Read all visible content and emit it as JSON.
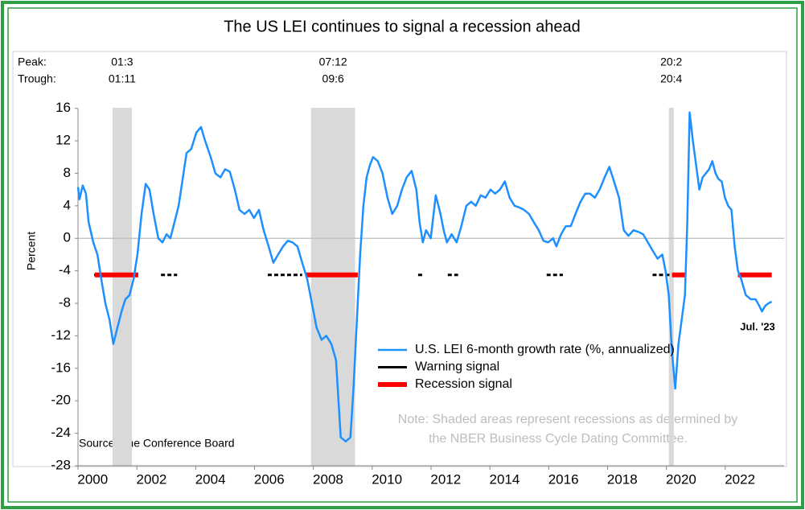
{
  "chart_data": {
    "type": "line",
    "title": "The US LEI continues to signal a recession ahead",
    "y_label": "Percent",
    "peak_label": "Peak:",
    "trough_label": "Trough:",
    "recessions": [
      {
        "peak": "01:3",
        "trough": "01:11",
        "start": 2001.17,
        "end": 2001.83
      },
      {
        "peak": "07:12",
        "trough": "09:6",
        "start": 2007.92,
        "end": 2009.42
      },
      {
        "peak": "20:2",
        "trough": "20:4",
        "start": 2020.08,
        "end": 2020.25
      }
    ],
    "recession_color": "#d9d9d9",
    "xlim": [
      2000,
      2024
    ],
    "xticks": [
      2000,
      2002,
      2004,
      2006,
      2008,
      2010,
      2012,
      2014,
      2016,
      2018,
      2020,
      2022
    ],
    "ylim": [
      -28,
      23
    ],
    "yticks": [
      16,
      12,
      8,
      4,
      0,
      -4,
      -8,
      -12,
      -16,
      -20,
      -24,
      -28
    ],
    "zero_line": true,
    "grid": false,
    "legend": "lower center",
    "series": [
      {
        "name": "U.S. LEI 6-month growth rate (%, annualized)",
        "color": "#1e8fff",
        "width": 2.5,
        "x": [
          2000.0,
          2000.05,
          2000.16,
          2000.27,
          2000.36,
          2000.52,
          2000.66,
          2000.79,
          2000.93,
          2001.07,
          2001.2,
          2001.34,
          2001.48,
          2001.61,
          2001.75,
          2001.89,
          2002.02,
          2002.16,
          2002.3,
          2002.43,
          2002.57,
          2002.73,
          2002.87,
          2003.01,
          2003.14,
          2003.28,
          2003.42,
          2003.69,
          2003.85,
          2004.02,
          2004.18,
          2004.32,
          2004.51,
          2004.67,
          2004.84,
          2005.0,
          2005.16,
          2005.33,
          2005.49,
          2005.66,
          2005.82,
          2005.98,
          2006.15,
          2006.31,
          2006.48,
          2006.64,
          2006.8,
          2006.97,
          2007.13,
          2007.29,
          2007.46,
          2007.62,
          2007.79,
          2007.95,
          2008.11,
          2008.28,
          2008.44,
          2008.61,
          2008.77,
          2008.93,
          2009.1,
          2009.26,
          2009.37,
          2009.48,
          2009.59,
          2009.7,
          2009.81,
          2009.92,
          2010.03,
          2010.19,
          2010.35,
          2010.52,
          2010.68,
          2010.85,
          2011.01,
          2011.17,
          2011.34,
          2011.5,
          2011.61,
          2011.72,
          2011.83,
          2011.99,
          2012.16,
          2012.32,
          2012.43,
          2012.54,
          2012.7,
          2012.87,
          2013.03,
          2013.2,
          2013.36,
          2013.52,
          2013.69,
          2013.85,
          2014.02,
          2014.18,
          2014.34,
          2014.51,
          2014.67,
          2014.84,
          2015.0,
          2015.16,
          2015.33,
          2015.49,
          2015.66,
          2015.82,
          2015.98,
          2016.15,
          2016.26,
          2016.42,
          2016.58,
          2016.75,
          2016.91,
          2017.08,
          2017.24,
          2017.4,
          2017.57,
          2017.73,
          2017.9,
          2018.06,
          2018.22,
          2018.39,
          2018.55,
          2018.71,
          2018.88,
          2019.04,
          2019.21,
          2019.37,
          2019.53,
          2019.7,
          2019.86,
          2019.97,
          2020.08,
          2020.19,
          2020.3,
          2020.41,
          2020.52,
          2020.63,
          2020.71,
          2020.79,
          2020.9,
          2021.01,
          2021.12,
          2021.23,
          2021.34,
          2021.45,
          2021.56,
          2021.67,
          2021.77,
          2021.88,
          2021.99,
          2022.1,
          2022.21,
          2022.32,
          2022.43,
          2022.54,
          2022.7,
          2022.87,
          2023.03,
          2023.14,
          2023.25,
          2023.36,
          2023.47,
          2023.58
        ],
        "values": [
          6.3,
          4.8,
          6.5,
          5.5,
          2,
          -0.5,
          -2,
          -5,
          -8,
          -10,
          -13,
          -11,
          -9,
          -7.5,
          -7,
          -5,
          -2,
          3,
          6.7,
          6,
          3,
          0,
          -0.5,
          0.5,
          0,
          2,
          4,
          10.5,
          11,
          13,
          13.7,
          12,
          10,
          8,
          7.5,
          8.5,
          8.2,
          6,
          3.5,
          3,
          3.5,
          2.5,
          3.5,
          1,
          -1,
          -3,
          -2,
          -1,
          -0.3,
          -0.5,
          -1,
          -3,
          -5,
          -8,
          -11,
          -12.5,
          -12,
          -13,
          -15,
          -24.5,
          -25,
          -24.5,
          -18,
          -10,
          -2,
          4,
          7.5,
          9,
          10,
          9.5,
          8,
          5,
          3,
          4,
          6,
          7.5,
          8.3,
          6,
          2,
          -0.5,
          1,
          0,
          5.3,
          3,
          1,
          -0.5,
          0.5,
          -0.5,
          1.5,
          4,
          4.5,
          4,
          5.3,
          5,
          6,
          5.5,
          6,
          7,
          5,
          4,
          3.8,
          3.5,
          3,
          2,
          1,
          -0.3,
          -0.5,
          0,
          -1,
          0.5,
          1.5,
          1.5,
          3,
          4.5,
          5.5,
          5.5,
          5,
          6,
          7.5,
          8.8,
          7,
          5,
          1,
          0.3,
          1,
          0.8,
          0.5,
          -0.5,
          -1.5,
          -2.5,
          -2,
          -4,
          -7,
          -14,
          -18.5,
          -13,
          -10,
          -7,
          2,
          15.5,
          12,
          9,
          6,
          7.5,
          8,
          8.5,
          9.5,
          8,
          7.3,
          7,
          5,
          4,
          3.5,
          -1,
          -4,
          -5,
          -7,
          -7.5,
          -7.5,
          -8.2,
          -9,
          -8.3,
          -8,
          -7.8
        ]
      },
      {
        "name": "Warning signal",
        "color": "#000000",
        "width": 3,
        "dashed": true,
        "x": [
          2000.55,
          2002.05,
          null,
          2002.82,
          2003.37,
          null,
          2006.45,
          2007.62,
          null,
          2011.56,
          2011.75,
          null,
          2012.57,
          2012.92,
          null,
          2015.93,
          2016.48,
          null,
          2019.53,
          2020.16
        ],
        "values": [
          -4.5,
          -4.5,
          null,
          -4.5,
          -4.5,
          null,
          -4.5,
          -4.5,
          null,
          -4.5,
          -4.5,
          null,
          -4.5,
          -4.5,
          null,
          -4.5,
          -4.5,
          null,
          -4.5,
          -4.5
        ]
      },
      {
        "name": "Recession signal",
        "color": "#ff0000",
        "width": 6,
        "dashed": false,
        "x": [
          2000.57,
          2002.05,
          null,
          2007.73,
          2009.51,
          null,
          2020.19,
          2020.66,
          null,
          2022.43,
          2023.58
        ],
        "values": [
          -4.5,
          -4.5,
          null,
          -4.5,
          -4.5,
          null,
          -4.5,
          -4.5,
          null,
          -4.5,
          -4.5
        ]
      }
    ],
    "annotation": "Jul. '23",
    "note": [
      "Note: Shaded areas represent recessions as determined by",
      "the NBER Business Cycle Dating Committee."
    ],
    "source": "Source: The Conference Board"
  }
}
